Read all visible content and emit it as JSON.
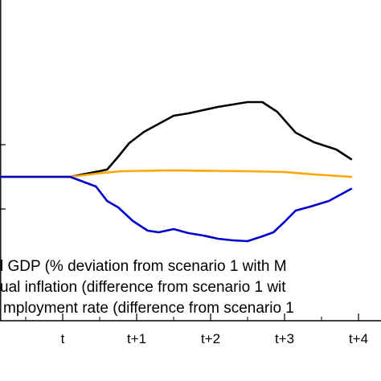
{
  "chart_data": {
    "type": "line",
    "ylim": [
      -0.93,
      1.0
    ],
    "xlim": [
      -1.5,
      3.9
    ],
    "x_ticks": [
      {
        "label": "t",
        "value": 0
      },
      {
        "label": "t+1",
        "value": 1
      },
      {
        "label": "t+2",
        "value": 2
      },
      {
        "label": "t+3",
        "value": 3
      },
      {
        "label": "t+4",
        "value": 4
      }
    ],
    "x_minor_ticks": [
      -0.5,
      0.5,
      1.5,
      2.5,
      3.5
    ],
    "y_ticks": [
      0.4,
      0,
      -0.4
    ],
    "grid": false,
    "legend_position": "bottom-left",
    "legend": [
      {
        "series_index": 0,
        "text": "l GDP (% deviation from scenario 1 with M"
      },
      {
        "series_index": 1,
        "text": "ual inflation (difference from scenario 1 wit"
      },
      {
        "series_index": 2,
        "text": "mployment rate (difference from scenario 1"
      }
    ],
    "series": [
      {
        "color": "#000000",
        "x": [
          -1.5,
          0.1,
          0.6,
          0.75,
          0.9,
          1.1,
          1.3,
          1.5,
          1.7,
          1.9,
          2.1,
          2.3,
          2.5,
          2.7,
          2.9,
          3.15,
          3.4,
          3.7,
          3.9
        ],
        "values": [
          0,
          0,
          0.09,
          0.25,
          0.42,
          0.56,
          0.66,
          0.76,
          0.79,
          0.83,
          0.87,
          0.9,
          0.93,
          0.93,
          0.81,
          0.55,
          0.43,
          0.34,
          0.22
        ]
      },
      {
        "color": "#ffa500",
        "x": [
          -1.5,
          0.1,
          0.5,
          0.8,
          1.1,
          1.5,
          2.0,
          2.5,
          3.0,
          3.4,
          3.9
        ],
        "values": [
          0,
          0,
          0.045,
          0.07,
          0.075,
          0.08,
          0.075,
          0.07,
          0.06,
          0.03,
          0
        ]
      },
      {
        "color": "#0000cd",
        "x": [
          -1.5,
          0.1,
          0.45,
          0.6,
          0.75,
          0.95,
          1.15,
          1.3,
          1.5,
          1.7,
          1.9,
          2.1,
          2.3,
          2.5,
          2.7,
          2.85,
          3.0,
          3.15,
          3.35,
          3.6,
          3.9
        ],
        "values": [
          0,
          0,
          -0.12,
          -0.3,
          -0.38,
          -0.55,
          -0.67,
          -0.69,
          -0.65,
          -0.7,
          -0.73,
          -0.77,
          -0.79,
          -0.8,
          -0.74,
          -0.69,
          -0.56,
          -0.42,
          -0.37,
          -0.3,
          -0.15
        ]
      }
    ]
  }
}
